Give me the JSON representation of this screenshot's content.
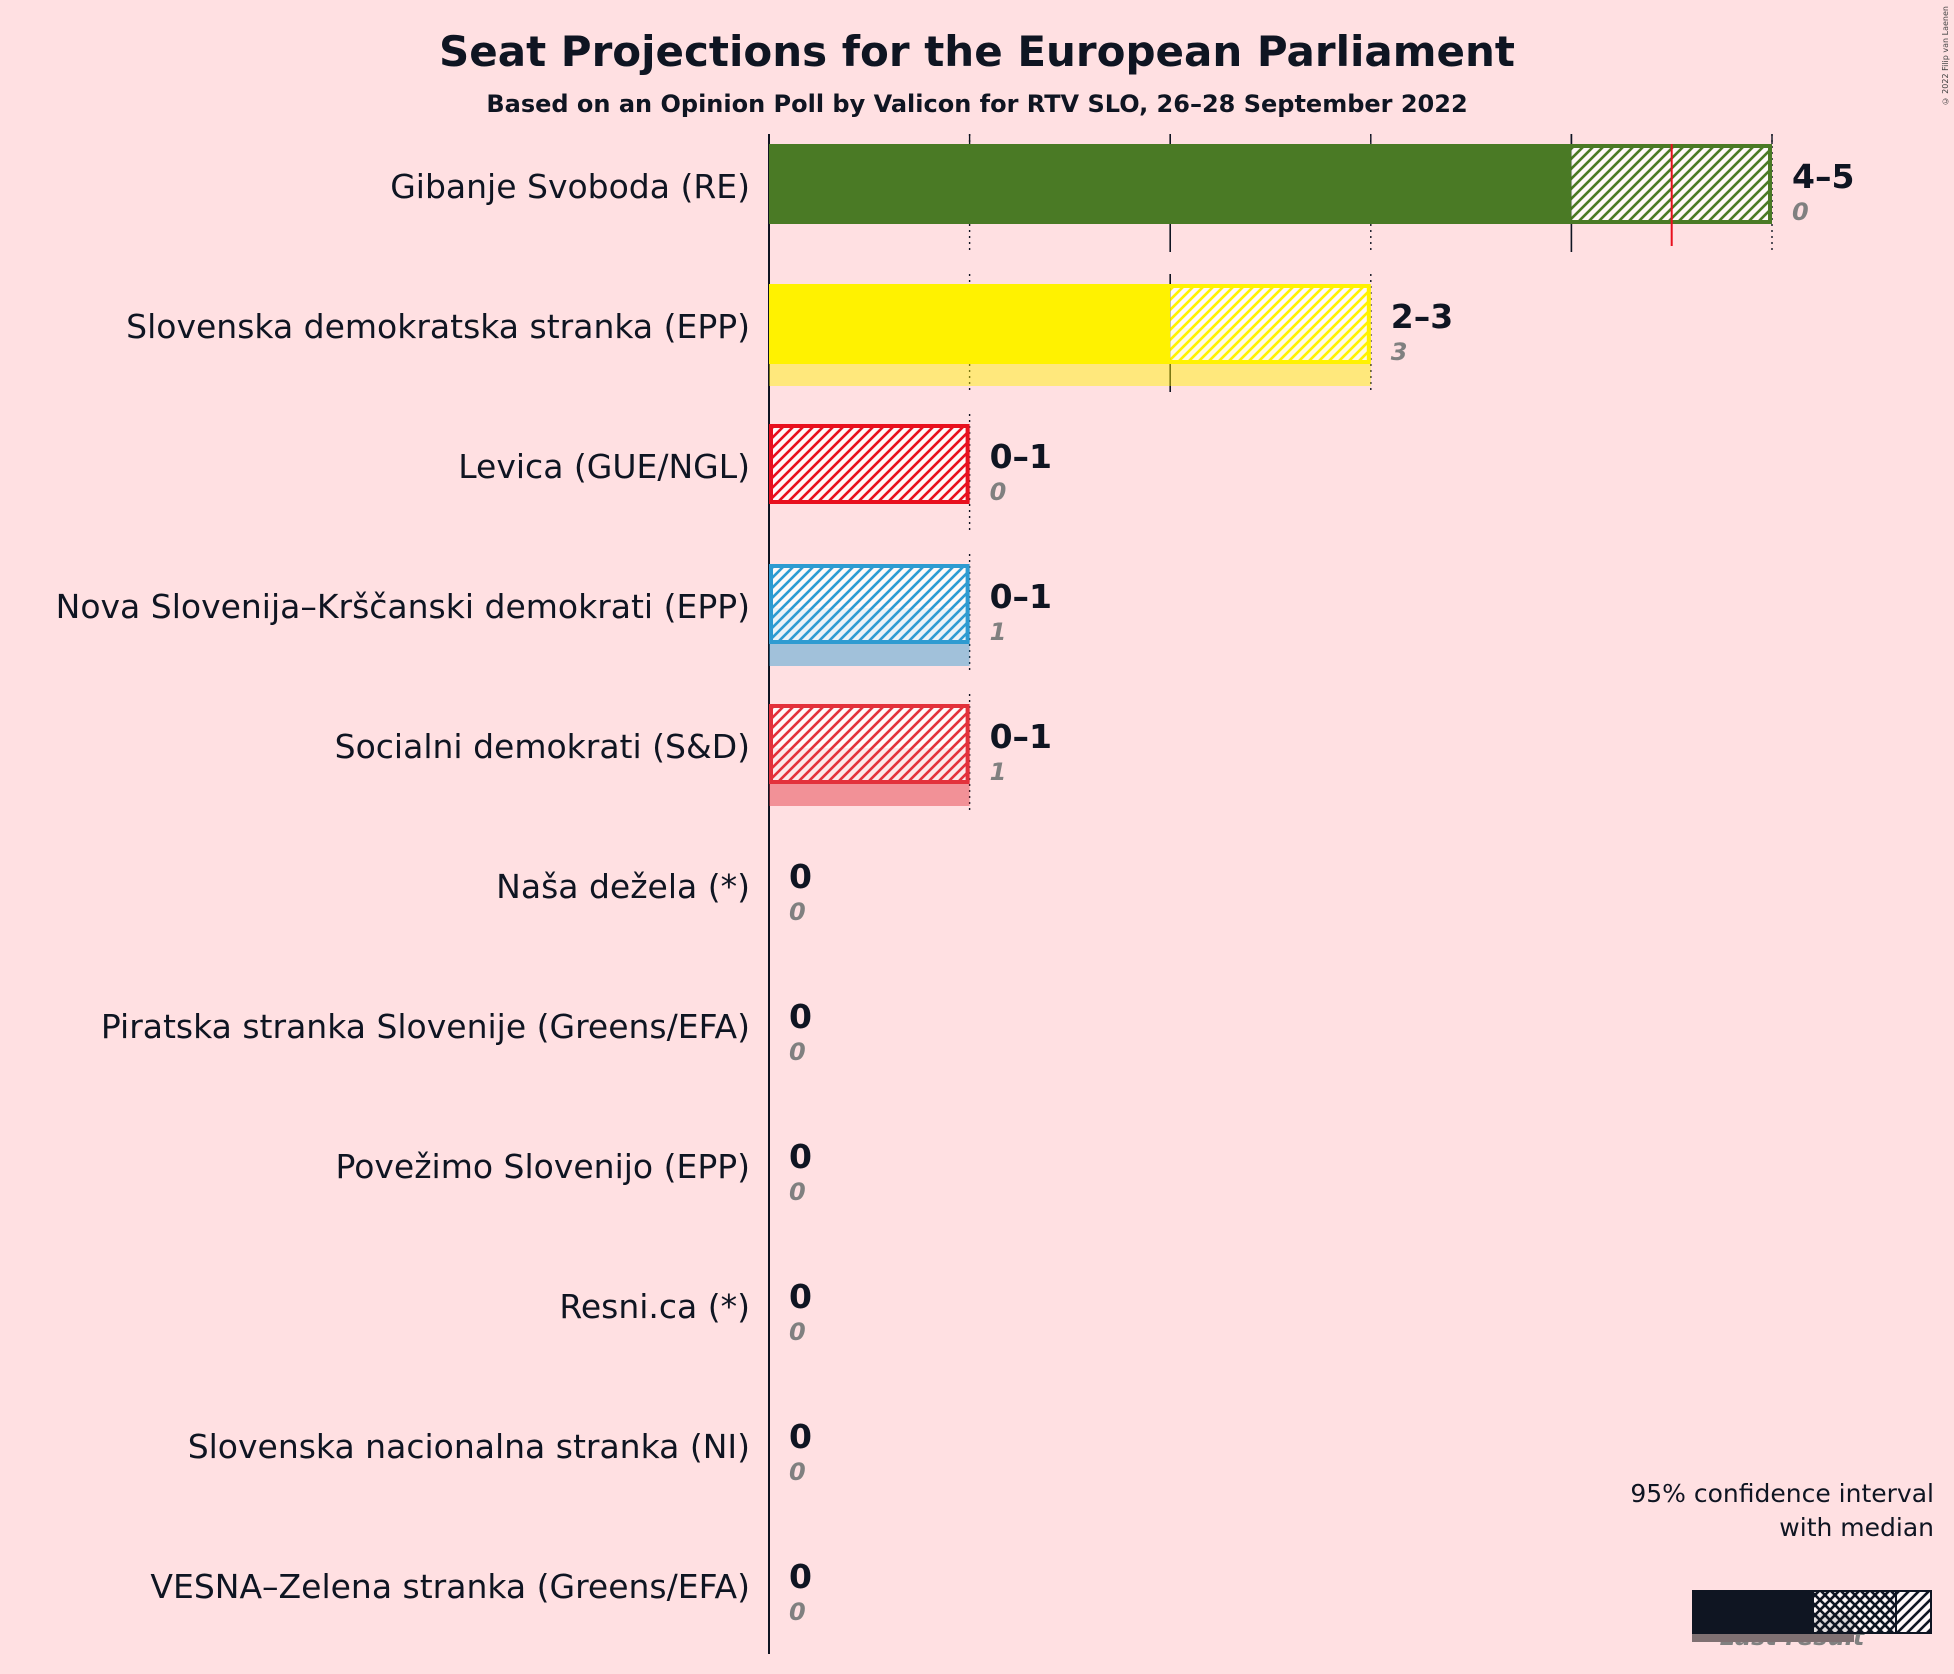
{
  "chart_data": {
    "type": "bar",
    "orientation": "horizontal",
    "title": "Seat Projections for the European Parliament",
    "subtitle": "Based on an Opinion Poll by Valicon for RTV SLO, 26–28 September 2022",
    "xlim": [
      0,
      5
    ],
    "grid": true,
    "legend_position": "bottom-right",
    "legend": {
      "title_line1": "95% confidence interval",
      "title_line2": "with median",
      "last_result_label": "Last result"
    },
    "copyright": "© 2022 Filip van Laenen",
    "parties": [
      {
        "name": "Gibanje Svoboda (RE)",
        "color": "#4A7A25",
        "low": 4,
        "high": 5,
        "median": 4.5,
        "range_label": "4–5",
        "last_result": 0,
        "last_label": "0"
      },
      {
        "name": "Slovenska demokratska stranka (EPP)",
        "color": "#FFF200",
        "low": 2,
        "high": 3,
        "median": 2,
        "range_label": "2–3",
        "last_result": 3,
        "last_label": "3"
      },
      {
        "name": "Levica (GUE/NGL)",
        "color": "#E8101E",
        "low": 0,
        "high": 1,
        "median": 0,
        "range_label": "0–1",
        "last_result": 0,
        "last_label": "0"
      },
      {
        "name": "Nova Slovenija–Krščanski demokrati (EPP)",
        "color": "#2E9BD1",
        "low": 0,
        "high": 1,
        "median": 0,
        "range_label": "0–1",
        "last_result": 1,
        "last_label": "1"
      },
      {
        "name": "Socialni demokrati (S&D)",
        "color": "#E3313B",
        "low": 0,
        "high": 1,
        "median": 0,
        "range_label": "0–1",
        "last_result": 1,
        "last_label": "1"
      },
      {
        "name": "Naša dežela (*)",
        "color": "#888888",
        "low": 0,
        "high": 0,
        "median": 0,
        "range_label": "0",
        "last_result": 0,
        "last_label": "0"
      },
      {
        "name": "Piratska stranka Slovenije (Greens/EFA)",
        "color": "#888888",
        "low": 0,
        "high": 0,
        "median": 0,
        "range_label": "0",
        "last_result": 0,
        "last_label": "0"
      },
      {
        "name": "Povežimo Slovenijo (EPP)",
        "color": "#888888",
        "low": 0,
        "high": 0,
        "median": 0,
        "range_label": "0",
        "last_result": 0,
        "last_label": "0"
      },
      {
        "name": "Resni.ca (*)",
        "color": "#888888",
        "low": 0,
        "high": 0,
        "median": 0,
        "range_label": "0",
        "last_result": 0,
        "last_label": "0"
      },
      {
        "name": "Slovenska nacionalna stranka (NI)",
        "color": "#888888",
        "low": 0,
        "high": 0,
        "median": 0,
        "range_label": "0",
        "last_result": 0,
        "last_label": "0"
      },
      {
        "name": "VESNA–Zelena stranka (Greens/EFA)",
        "color": "#888888",
        "low": 0,
        "high": 0,
        "median": 0,
        "range_label": "0",
        "last_result": 0,
        "last_label": "0"
      }
    ]
  }
}
